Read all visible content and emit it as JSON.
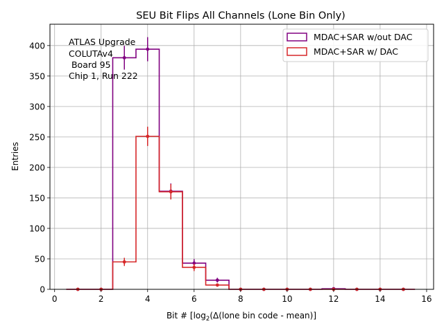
{
  "chart_data": {
    "type": "histogram-step",
    "title": "SEU Bit Flips All Channels (Lone Bin Only)",
    "xlabel_pre": "Bit # [log",
    "xlabel_sub": "2",
    "xlabel_post": "(Δ(lone bin code - mean)]",
    "ylabel": "Entries",
    "xlim": [
      -0.2,
      16.3
    ],
    "ylim": [
      0,
      435
    ],
    "xticks": [
      0,
      2,
      4,
      6,
      8,
      10,
      12,
      14,
      16
    ],
    "yticks": [
      0,
      50,
      100,
      150,
      200,
      250,
      300,
      350,
      400
    ],
    "grid": true,
    "legend_position": "top-right",
    "annotation": [
      "ATLAS Upgrade",
      "COLUTAv4",
      " Board 95",
      "Chip 1, Run 222"
    ],
    "x": [
      1,
      2,
      3,
      4,
      5,
      6,
      7,
      8,
      9,
      10,
      11,
      12,
      13,
      14,
      15
    ],
    "series": [
      {
        "name": "MDAC+SAR w/out DAC",
        "color": "#800080",
        "values": [
          0,
          0,
          380,
          394,
          161,
          43,
          15,
          0,
          0,
          0,
          0,
          1,
          0,
          0,
          0
        ],
        "errors": [
          0,
          0,
          19.5,
          19.8,
          12.7,
          6.6,
          3.9,
          0,
          0,
          0,
          0,
          1,
          0,
          0,
          0
        ]
      },
      {
        "name": "MDAC+SAR w/ DAC",
        "color": "#d62728",
        "values": [
          0,
          0,
          45,
          251,
          160,
          36,
          7,
          0,
          0,
          0,
          0,
          0,
          0,
          0,
          0
        ],
        "errors": [
          0,
          0,
          6.7,
          15.8,
          12.6,
          6.0,
          2.6,
          0,
          0,
          0,
          0,
          0,
          0,
          0,
          0
        ]
      }
    ]
  }
}
